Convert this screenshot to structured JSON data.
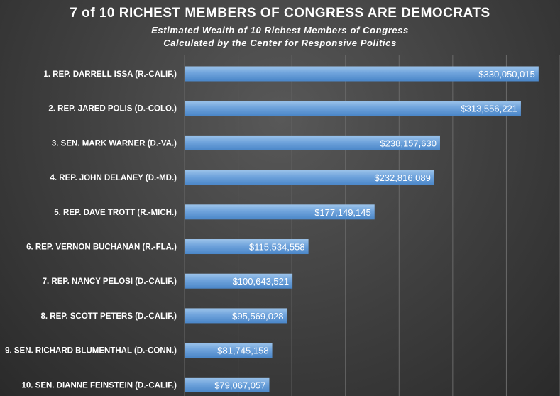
{
  "title": "7 of 10 RICHEST MEMBERS OF CONGRESS ARE DEMOCRATS",
  "subtitle_line1": "Estimated  Wealth  of 10 Richest  Members  of Congress",
  "subtitle_line2": "Calculated  by the Center for Responsive  Politics",
  "colors": {
    "bar_top": "#9cc3ea",
    "bar_bottom": "#4a86c8",
    "background": "#3e3e3e"
  },
  "chart_data": {
    "type": "bar",
    "orientation": "horizontal",
    "categories": [
      "1. REP. DARRELL ISSA (R.-CALIF.)",
      "2. REP. JARED POLIS (D.-COLO.)",
      "3. SEN. MARK WARNER (D.-VA.)",
      "4. REP. JOHN DELANEY (D.-MD.)",
      "5. REP. DAVE TROTT (R.-MICH.)",
      "6. REP. VERNON BUCHANAN (R.-FLA.)",
      "7. REP. NANCY PELOSI (D.-CALIF.)",
      "8. REP. SCOTT PETERS (D.-CALIF.)",
      "9. SEN. RICHARD BLUMENTHAL (D.-CONN.)",
      "10. SEN. DIANNE FEINSTEIN (D.-CALIF.)"
    ],
    "values": [
      330050015,
      313556221,
      238157630,
      232816089,
      177149145,
      115534558,
      100643521,
      95569028,
      81745158,
      79067057
    ],
    "value_labels": [
      "$330,050,015",
      "$313,556,221",
      "$238,157,630",
      "$232,816,089",
      "$177,149,145",
      "$115,534,558",
      "$100,643,521",
      "$95,569,028",
      "$81,745,158",
      "$79,067,057"
    ],
    "xlim": [
      0,
      350000000
    ],
    "grid": true,
    "legend": "none"
  }
}
